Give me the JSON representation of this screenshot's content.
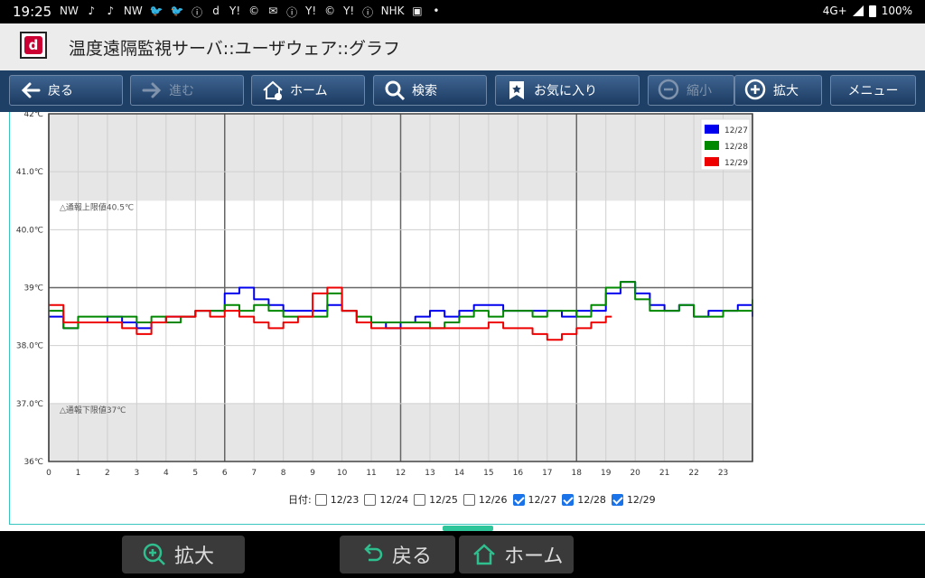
{
  "status": {
    "time": "19:25",
    "notifications": [
      "NW",
      "♪",
      "♪",
      "NW",
      "🐦",
      "🐦",
      "ⓘ",
      "d",
      "Y!",
      "©",
      "✉",
      "ⓘ",
      "Y!",
      "©",
      "Y!",
      "ⓘ",
      "NHK",
      "▣",
      "•"
    ],
    "network": "4G+",
    "battery": "100%"
  },
  "titlebar": {
    "title": "温度遠隔監視サーバ::ユーザウェア::グラフ",
    "logo_letter": "d"
  },
  "toolbar": {
    "back": "戻る",
    "forward": "進む",
    "home": "ホーム",
    "search": "検索",
    "favorites": "お気に入り",
    "zoom_out": "縮小",
    "zoom_in": "拡大",
    "menu": "メニュー"
  },
  "chart_data": {
    "type": "line",
    "xlim": [
      0,
      24
    ],
    "ylim": [
      36,
      42
    ],
    "x_ticks": [
      "0",
      "1",
      "2",
      "3",
      "4",
      "5",
      "6",
      "7",
      "8",
      "9",
      "10",
      "11",
      "12",
      "13",
      "14",
      "15",
      "16",
      "17",
      "18",
      "19",
      "20",
      "21",
      "22",
      "23"
    ],
    "y_ticks": [
      "36℃",
      "37.0℃",
      "38.0℃",
      "39℃",
      "40.0℃",
      "41.0℃",
      "42℃"
    ],
    "upper_limit": {
      "value": 40.5,
      "label": "△通報上限値40.5℃"
    },
    "lower_limit": {
      "value": 37.0,
      "label": "△通報下限値37℃"
    },
    "legend_position": "top-right",
    "series": [
      {
        "name": "12/27",
        "color": "#0000ee",
        "x": [
          0,
          0.5,
          1,
          1.5,
          2,
          2.5,
          3,
          3.5,
          4,
          4.5,
          5,
          5.5,
          6,
          6.5,
          7,
          7.5,
          8,
          8.5,
          9,
          9.5,
          10,
          10.5,
          11,
          11.5,
          12,
          12.5,
          13,
          13.5,
          14,
          14.5,
          15,
          15.5,
          16,
          16.5,
          17,
          17.5,
          18,
          18.5,
          19,
          19.5,
          20,
          20.5,
          21,
          21.5,
          22,
          22.5,
          23,
          23.5,
          24
        ],
        "values": [
          38.5,
          38.3,
          38.4,
          38.4,
          38.5,
          38.4,
          38.3,
          38.4,
          38.5,
          38.5,
          38.6,
          38.6,
          38.9,
          39.0,
          38.8,
          38.7,
          38.6,
          38.6,
          38.6,
          38.7,
          38.6,
          38.4,
          38.4,
          38.3,
          38.4,
          38.5,
          38.6,
          38.5,
          38.6,
          38.7,
          38.7,
          38.6,
          38.6,
          38.6,
          38.6,
          38.5,
          38.6,
          38.6,
          38.9,
          39.1,
          38.9,
          38.7,
          38.6,
          38.7,
          38.5,
          38.6,
          38.6,
          38.7,
          38.5
        ]
      },
      {
        "name": "12/28",
        "color": "#008800",
        "x": [
          0,
          0.5,
          1,
          1.5,
          2,
          2.5,
          3,
          3.5,
          4,
          4.5,
          5,
          5.5,
          6,
          6.5,
          7,
          7.5,
          8,
          8.5,
          9,
          9.5,
          10,
          10.5,
          11,
          11.5,
          12,
          12.5,
          13,
          13.5,
          14,
          14.5,
          15,
          15.5,
          16,
          16.5,
          17,
          17.5,
          18,
          18.5,
          19,
          19.5,
          20,
          20.5,
          21,
          21.5,
          22,
          22.5,
          23,
          23.5,
          24
        ],
        "values": [
          38.6,
          38.3,
          38.5,
          38.5,
          38.5,
          38.5,
          38.4,
          38.5,
          38.4,
          38.5,
          38.6,
          38.6,
          38.7,
          38.6,
          38.7,
          38.6,
          38.5,
          38.5,
          38.5,
          38.9,
          38.6,
          38.5,
          38.4,
          38.4,
          38.4,
          38.4,
          38.3,
          38.4,
          38.5,
          38.6,
          38.5,
          38.6,
          38.6,
          38.5,
          38.6,
          38.6,
          38.5,
          38.7,
          39.0,
          39.1,
          38.8,
          38.6,
          38.6,
          38.7,
          38.5,
          38.5,
          38.6,
          38.6,
          38.8
        ]
      },
      {
        "name": "12/29",
        "color": "#ee0000",
        "x": [
          0,
          0.5,
          1,
          1.5,
          2,
          2.5,
          3,
          3.5,
          4,
          4.5,
          5,
          5.5,
          6,
          6.5,
          7,
          7.5,
          8,
          8.5,
          9,
          9.5,
          10,
          10.5,
          11,
          11.5,
          12,
          12.5,
          13,
          13.5,
          14,
          14.5,
          15,
          15.5,
          16,
          16.5,
          17,
          17.5,
          18,
          18.5,
          19,
          19.2
        ],
        "values": [
          38.7,
          38.4,
          38.4,
          38.4,
          38.4,
          38.3,
          38.2,
          38.4,
          38.5,
          38.5,
          38.6,
          38.5,
          38.6,
          38.5,
          38.4,
          38.3,
          38.4,
          38.5,
          38.9,
          39.0,
          38.6,
          38.4,
          38.3,
          38.3,
          38.3,
          38.3,
          38.3,
          38.3,
          38.3,
          38.3,
          38.4,
          38.3,
          38.3,
          38.2,
          38.1,
          38.2,
          38.3,
          38.4,
          38.5,
          38.5
        ]
      }
    ]
  },
  "dates": {
    "label": "日付:",
    "items": [
      {
        "date": "12/23",
        "checked": false
      },
      {
        "date": "12/24",
        "checked": false
      },
      {
        "date": "12/25",
        "checked": false
      },
      {
        "date": "12/26",
        "checked": false
      },
      {
        "date": "12/27",
        "checked": true
      },
      {
        "date": "12/28",
        "checked": true
      },
      {
        "date": "12/29",
        "checked": true
      }
    ]
  },
  "bottom_nav": {
    "zoom_in": "拡大",
    "back": "戻る",
    "home": "ホーム"
  }
}
